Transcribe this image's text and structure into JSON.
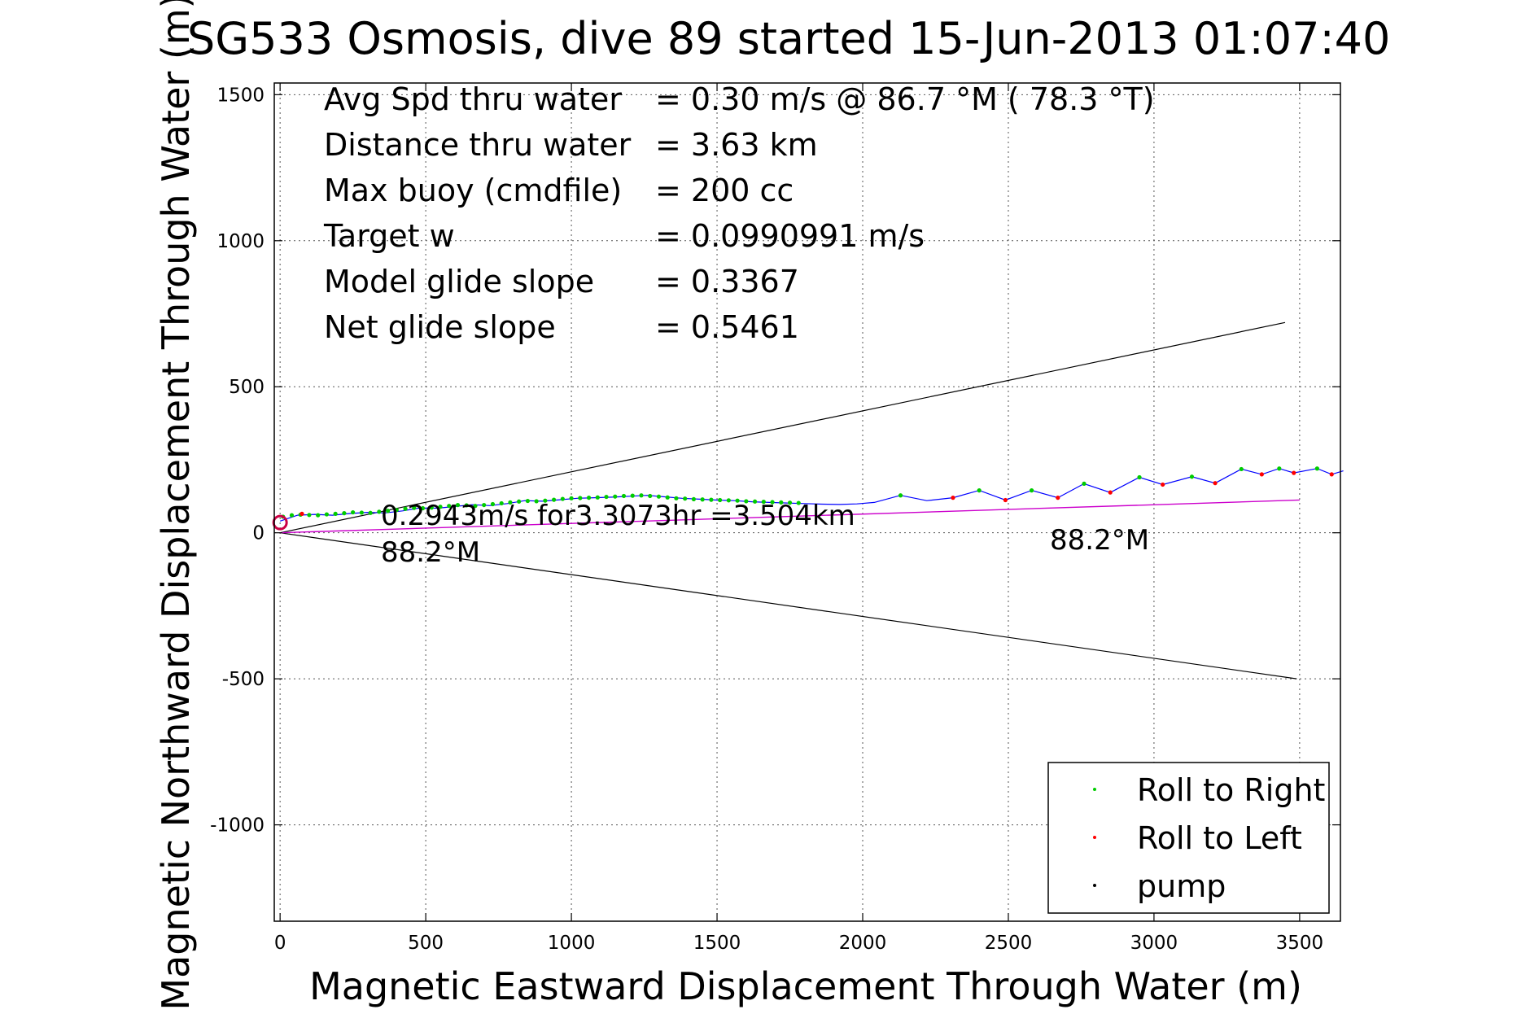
{
  "chart_data": {
    "type": "line",
    "title": "SG533 Osmosis, dive 89 started 15-Jun-2013 01:07:40",
    "xlabel": "Magnetic Eastward Displacement Through Water (m)",
    "ylabel": "Magnetic Northward Displacement Through Water (m)",
    "xlim": [
      -20,
      3640
    ],
    "ylim": [
      -1330,
      1540
    ],
    "grid": true,
    "xticks": [
      0,
      500,
      1000,
      1500,
      2000,
      2500,
      3000,
      3500
    ],
    "xtick_labels": [
      "0",
      "500",
      "1000",
      "1500",
      "2000",
      "2500",
      "3000",
      "3500"
    ],
    "yticks": [
      1500,
      1000,
      500,
      0,
      -500,
      -1000
    ],
    "ytick_labels": [
      "1500",
      "1000",
      "500",
      "0",
      "-500",
      "-1000"
    ],
    "info_lines": [
      {
        "label": "Avg Spd thru water",
        "value": "=  0.30 m/s @  86.7 °M ( 78.3 °T)"
      },
      {
        "label": "Distance thru water",
        "value": "=  3.63 km"
      },
      {
        "label": "Max buoy (cmdfile)",
        "value": "= 200 cc"
      },
      {
        "label": "Target w",
        "value": "= 0.0990991 m/s"
      },
      {
        "label": "Model glide slope",
        "value": "= 0.3367"
      },
      {
        "label": "Net glide slope",
        "value": "= 0.5461"
      }
    ],
    "annotations": {
      "speed_note": "0.2943m/s for3.3073hr =3.504km",
      "heading_near": "88.2°M",
      "heading_far": "88.2°M"
    },
    "cone_lines": [
      {
        "name": "upper",
        "color": "#000000",
        "x": [
          0,
          3450
        ],
        "y": [
          0,
          720
        ]
      },
      {
        "name": "lower",
        "color": "#000000",
        "x": [
          0,
          3490
        ],
        "y": [
          0,
          -500
        ]
      }
    ],
    "heading_line": {
      "color": "#cc00cc",
      "x": [
        0,
        3500
      ],
      "y": [
        0,
        112
      ]
    },
    "track": {
      "color": "#0000ff",
      "x": [
        0,
        60,
        120,
        180,
        240,
        300,
        360,
        420,
        480,
        540,
        600,
        660,
        720,
        780,
        840,
        900,
        960,
        1020,
        1080,
        1140,
        1200,
        1260,
        1320,
        1380,
        1440,
        1500,
        1560,
        1620,
        1680,
        1740,
        1800,
        1860,
        1920,
        1980,
        2040,
        2130,
        2220,
        2310,
        2400,
        2490,
        2580,
        2670,
        2760,
        2850,
        2950,
        3030,
        3130,
        3210,
        3300,
        3370,
        3430,
        3480,
        3560,
        3610,
        3650
      ],
      "y": [
        40,
        60,
        63,
        60,
        66,
        70,
        68,
        75,
        85,
        84,
        90,
        96,
        93,
        100,
        110,
        108,
        113,
        118,
        120,
        122,
        125,
        128,
        123,
        118,
        115,
        112,
        110,
        106,
        104,
        102,
        100,
        98,
        97,
        99,
        104,
        128,
        110,
        120,
        145,
        112,
        145,
        120,
        168,
        138,
        190,
        165,
        192,
        170,
        218,
        200,
        220,
        205,
        220,
        200,
        212
      ]
    },
    "roll_right_points": {
      "color": "#00cc00",
      "x": [
        10,
        40,
        70,
        100,
        130,
        160,
        190,
        220,
        250,
        280,
        310,
        340,
        370,
        400,
        430,
        460,
        490,
        520,
        550,
        580,
        610,
        640,
        670,
        700,
        730,
        760,
        790,
        820,
        850,
        880,
        910,
        940,
        970,
        1000,
        1030,
        1060,
        1090,
        1120,
        1150,
        1180,
        1210,
        1240,
        1270,
        1300,
        1330,
        1360,
        1390,
        1420,
        1450,
        1480,
        1510,
        1540,
        1570,
        1600,
        1630,
        1660,
        1690,
        1720,
        1750,
        1780,
        2130,
        2400,
        2580,
        2760,
        2950,
        3130,
        3300,
        3430,
        3560
      ],
      "y": [
        55,
        60,
        62,
        61,
        60,
        63,
        65,
        67,
        70,
        69,
        68,
        72,
        75,
        78,
        82,
        85,
        84,
        86,
        89,
        92,
        95,
        94,
        92,
        95,
        98,
        101,
        104,
        107,
        109,
        108,
        110,
        113,
        116,
        118,
        119,
        120,
        121,
        123,
        124,
        126,
        127,
        128,
        126,
        124,
        121,
        118,
        117,
        115,
        114,
        113,
        112,
        111,
        110,
        108,
        107,
        106,
        105,
        104,
        103,
        102,
        128,
        145,
        145,
        168,
        190,
        192,
        218,
        220,
        220
      ]
    },
    "roll_left_points": {
      "color": "#ff0000",
      "x": [
        75,
        2310,
        2490,
        2670,
        2850,
        3030,
        3210,
        3370,
        3480,
        3610
      ],
      "y": [
        65,
        120,
        112,
        120,
        138,
        165,
        170,
        200,
        205,
        200
      ]
    },
    "start_marker": {
      "color": "#cc0044",
      "x": 0,
      "y": 35
    },
    "legend": {
      "position": "bottom-right",
      "entries": [
        {
          "label": "Roll to Right",
          "color": "#00cc00"
        },
        {
          "label": "Roll to Left",
          "color": "#ff0000"
        },
        {
          "label": "pump",
          "color": "#000000"
        }
      ]
    }
  }
}
